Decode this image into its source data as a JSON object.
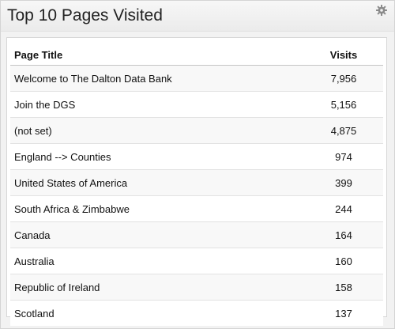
{
  "widget": {
    "title": "Top 10 Pages Visited",
    "settings_icon": "gear-icon"
  },
  "table": {
    "columns": [
      "Page Title",
      "Visits"
    ],
    "rows": [
      {
        "page": "Welcome to The Dalton Data Bank",
        "visits": "7,956"
      },
      {
        "page": "Join the DGS",
        "visits": "5,156"
      },
      {
        "page": "(not set)",
        "visits": "4,875"
      },
      {
        "page": "England --> Counties",
        "visits": "974"
      },
      {
        "page": "United States of America",
        "visits": "399"
      },
      {
        "page": "South Africa & Zimbabwe",
        "visits": "244"
      },
      {
        "page": "Canada",
        "visits": "164"
      },
      {
        "page": "Australia",
        "visits": "160"
      },
      {
        "page": "Republic of Ireland",
        "visits": "158"
      },
      {
        "page": "Scotland",
        "visits": "137"
      }
    ]
  }
}
